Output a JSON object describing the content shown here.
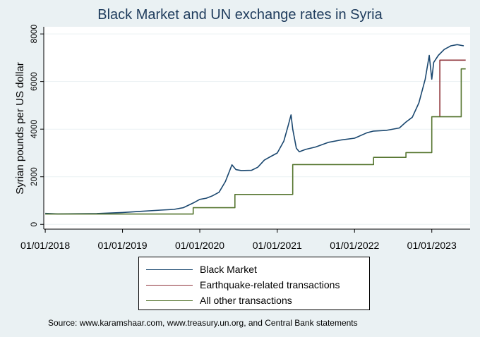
{
  "chart_data": {
    "type": "line",
    "title": "Black Market and UN exchange rates in Syria",
    "xlabel": "",
    "ylabel": "Syrian pounds per US dollar",
    "xlim": [
      "2017-12-25",
      "2023-07-01"
    ],
    "ylim": [
      -200,
      8300
    ],
    "x_ticks": [
      "2018-01-01",
      "2019-01-01",
      "2020-01-01",
      "2021-01-01",
      "2022-01-01",
      "2023-01-01"
    ],
    "x_tick_labels": [
      "01/01/2018",
      "01/01/2019",
      "01/01/2020",
      "01/01/2021",
      "01/01/2022",
      "01/01/2023"
    ],
    "y_ticks": [
      0,
      2000,
      4000,
      6000,
      8000
    ],
    "y_tick_labels": [
      "0",
      "2000",
      "4000",
      "6000",
      "8000"
    ],
    "grid": true,
    "legend_position": "bottom",
    "source_note": "Source: www.karamshaar.com, www.treasury.un.org, and Central Bank statements",
    "series": [
      {
        "name": "Black Market",
        "color": "#1a476f",
        "step": false,
        "points": [
          [
            "2018-01-01",
            460
          ],
          [
            "2018-03-01",
            440
          ],
          [
            "2018-06-01",
            445
          ],
          [
            "2018-09-01",
            455
          ],
          [
            "2019-01-01",
            500
          ],
          [
            "2019-04-01",
            550
          ],
          [
            "2019-07-01",
            600
          ],
          [
            "2019-09-01",
            630
          ],
          [
            "2019-10-15",
            700
          ],
          [
            "2019-12-01",
            900
          ],
          [
            "2020-01-01",
            1050
          ],
          [
            "2020-02-01",
            1100
          ],
          [
            "2020-03-01",
            1200
          ],
          [
            "2020-04-01",
            1350
          ],
          [
            "2020-05-01",
            1800
          ],
          [
            "2020-06-01",
            2500
          ],
          [
            "2020-06-20",
            2300
          ],
          [
            "2020-07-15",
            2260
          ],
          [
            "2020-09-01",
            2270
          ],
          [
            "2020-10-01",
            2400
          ],
          [
            "2020-11-01",
            2700
          ],
          [
            "2020-12-01",
            2850
          ],
          [
            "2021-01-01",
            3000
          ],
          [
            "2021-02-01",
            3500
          ],
          [
            "2021-02-20",
            4100
          ],
          [
            "2021-03-07",
            4600
          ],
          [
            "2021-03-15",
            4000
          ],
          [
            "2021-04-01",
            3200
          ],
          [
            "2021-04-15",
            3050
          ],
          [
            "2021-05-15",
            3150
          ],
          [
            "2021-07-01",
            3250
          ],
          [
            "2021-09-01",
            3450
          ],
          [
            "2021-11-01",
            3550
          ],
          [
            "2022-01-01",
            3620
          ],
          [
            "2022-03-01",
            3850
          ],
          [
            "2022-04-01",
            3920
          ],
          [
            "2022-06-01",
            3950
          ],
          [
            "2022-08-01",
            4050
          ],
          [
            "2022-09-01",
            4300
          ],
          [
            "2022-10-01",
            4500
          ],
          [
            "2022-11-01",
            5100
          ],
          [
            "2022-12-01",
            6100
          ],
          [
            "2022-12-20",
            7100
          ],
          [
            "2023-01-01",
            6100
          ],
          [
            "2023-01-10",
            6800
          ],
          [
            "2023-02-01",
            7100
          ],
          [
            "2023-03-01",
            7350
          ],
          [
            "2023-04-01",
            7500
          ],
          [
            "2023-05-01",
            7550
          ],
          [
            "2023-06-01",
            7500
          ]
        ]
      },
      {
        "name": "Earthquake-related transactions",
        "color": "#90353b",
        "step": true,
        "points": [
          [
            "2023-02-08",
            4522
          ],
          [
            "2023-02-08",
            6900
          ],
          [
            "2023-06-10",
            6900
          ]
        ]
      },
      {
        "name": "All other transactions",
        "color": "#55752f",
        "step": true,
        "points": [
          [
            "2018-01-01",
            434
          ],
          [
            "2019-12-01",
            434
          ],
          [
            "2019-12-01",
            700
          ],
          [
            "2020-06-15",
            700
          ],
          [
            "2020-06-15",
            1256
          ],
          [
            "2021-03-15",
            1256
          ],
          [
            "2021-03-15",
            2512
          ],
          [
            "2022-04-01",
            2512
          ],
          [
            "2022-04-01",
            2814
          ],
          [
            "2022-09-01",
            2814
          ],
          [
            "2022-09-01",
            3015
          ],
          [
            "2023-01-01",
            3015
          ],
          [
            "2023-01-01",
            4522
          ],
          [
            "2023-05-20",
            4522
          ],
          [
            "2023-05-20",
            6532
          ],
          [
            "2023-06-10",
            6532
          ]
        ]
      }
    ]
  }
}
